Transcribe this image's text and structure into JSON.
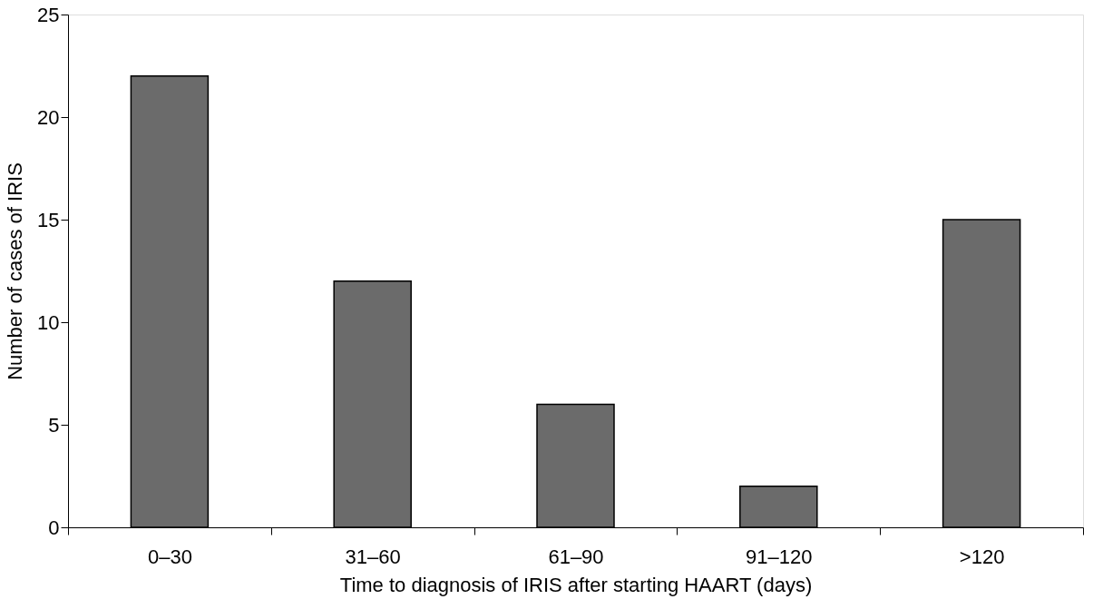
{
  "chart_data": {
    "type": "bar",
    "xlabel": "Time to diagnosis of IRIS after starting HAART (days)",
    "ylabel": "Number of cases of IRIS",
    "categories": [
      "0–30",
      "31–60",
      "61–90",
      "91–120",
      ">120"
    ],
    "values": [
      22,
      12,
      6,
      2,
      15
    ],
    "color": "#6b6b6b",
    "ylim": [
      0,
      25
    ],
    "yticks": [
      0,
      5,
      10,
      15,
      20,
      25
    ],
    "grid": false
  }
}
